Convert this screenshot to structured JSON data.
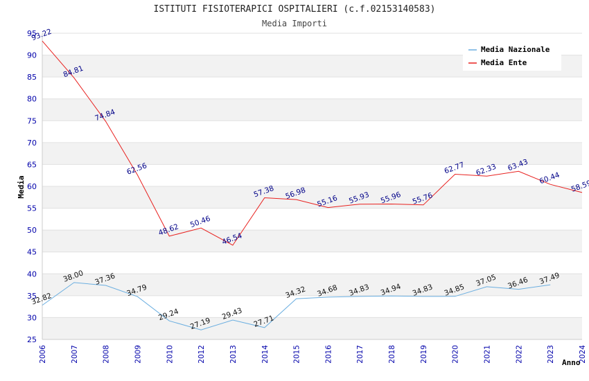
{
  "chart_data": {
    "type": "line",
    "title": "ISTITUTI FISIOTERAPICI OSPITALIERI (c.f.02153140583)",
    "subtitle": "Media Importi",
    "xlabel": "Anno",
    "ylabel": "Media",
    "categories": [
      "2006",
      "2007",
      "2008",
      "2009",
      "2010",
      "2012",
      "2013",
      "2014",
      "2015",
      "2016",
      "2017",
      "2018",
      "2019",
      "2020",
      "2021",
      "2022",
      "2023",
      "2024"
    ],
    "ylim": [
      25,
      95
    ],
    "yticks": [
      "25",
      "30",
      "35",
      "40",
      "45",
      "50",
      "55",
      "60",
      "65",
      "70",
      "75",
      "80",
      "85",
      "90",
      "95"
    ],
    "grid": true,
    "legend_position": "top-right",
    "series": [
      {
        "name": "Media Nazionale",
        "color": "#6aaee0",
        "values": [
          32.82,
          38.0,
          37.36,
          34.79,
          29.24,
          27.19,
          29.43,
          27.71,
          34.32,
          34.68,
          34.83,
          34.94,
          34.83,
          34.85,
          37.05,
          36.46,
          37.49,
          null
        ],
        "labels": [
          "32.82",
          "38.00",
          "37.36",
          "34.79",
          "29.24",
          "27.19",
          "29.43",
          "27.71",
          "34.32",
          "34.68",
          "34.83",
          "34.94",
          "34.83",
          "34.85",
          "37.05",
          "36.46",
          "37.49",
          ""
        ]
      },
      {
        "name": "Media Ente",
        "color": "#e8201e",
        "values": [
          93.22,
          84.81,
          74.84,
          62.56,
          48.62,
          50.46,
          46.54,
          57.38,
          56.98,
          55.16,
          55.93,
          55.96,
          55.76,
          62.77,
          62.33,
          63.43,
          60.44,
          58.59
        ],
        "labels": [
          "93.22",
          "84.81",
          "74.84",
          "62.56",
          "48.62",
          "50.46",
          "46.54",
          "57.38",
          "56.98",
          "55.16",
          "55.93",
          "55.96",
          "55.76",
          "62.77",
          "62.33",
          "63.43",
          "60.44",
          "58.59"
        ]
      }
    ]
  }
}
